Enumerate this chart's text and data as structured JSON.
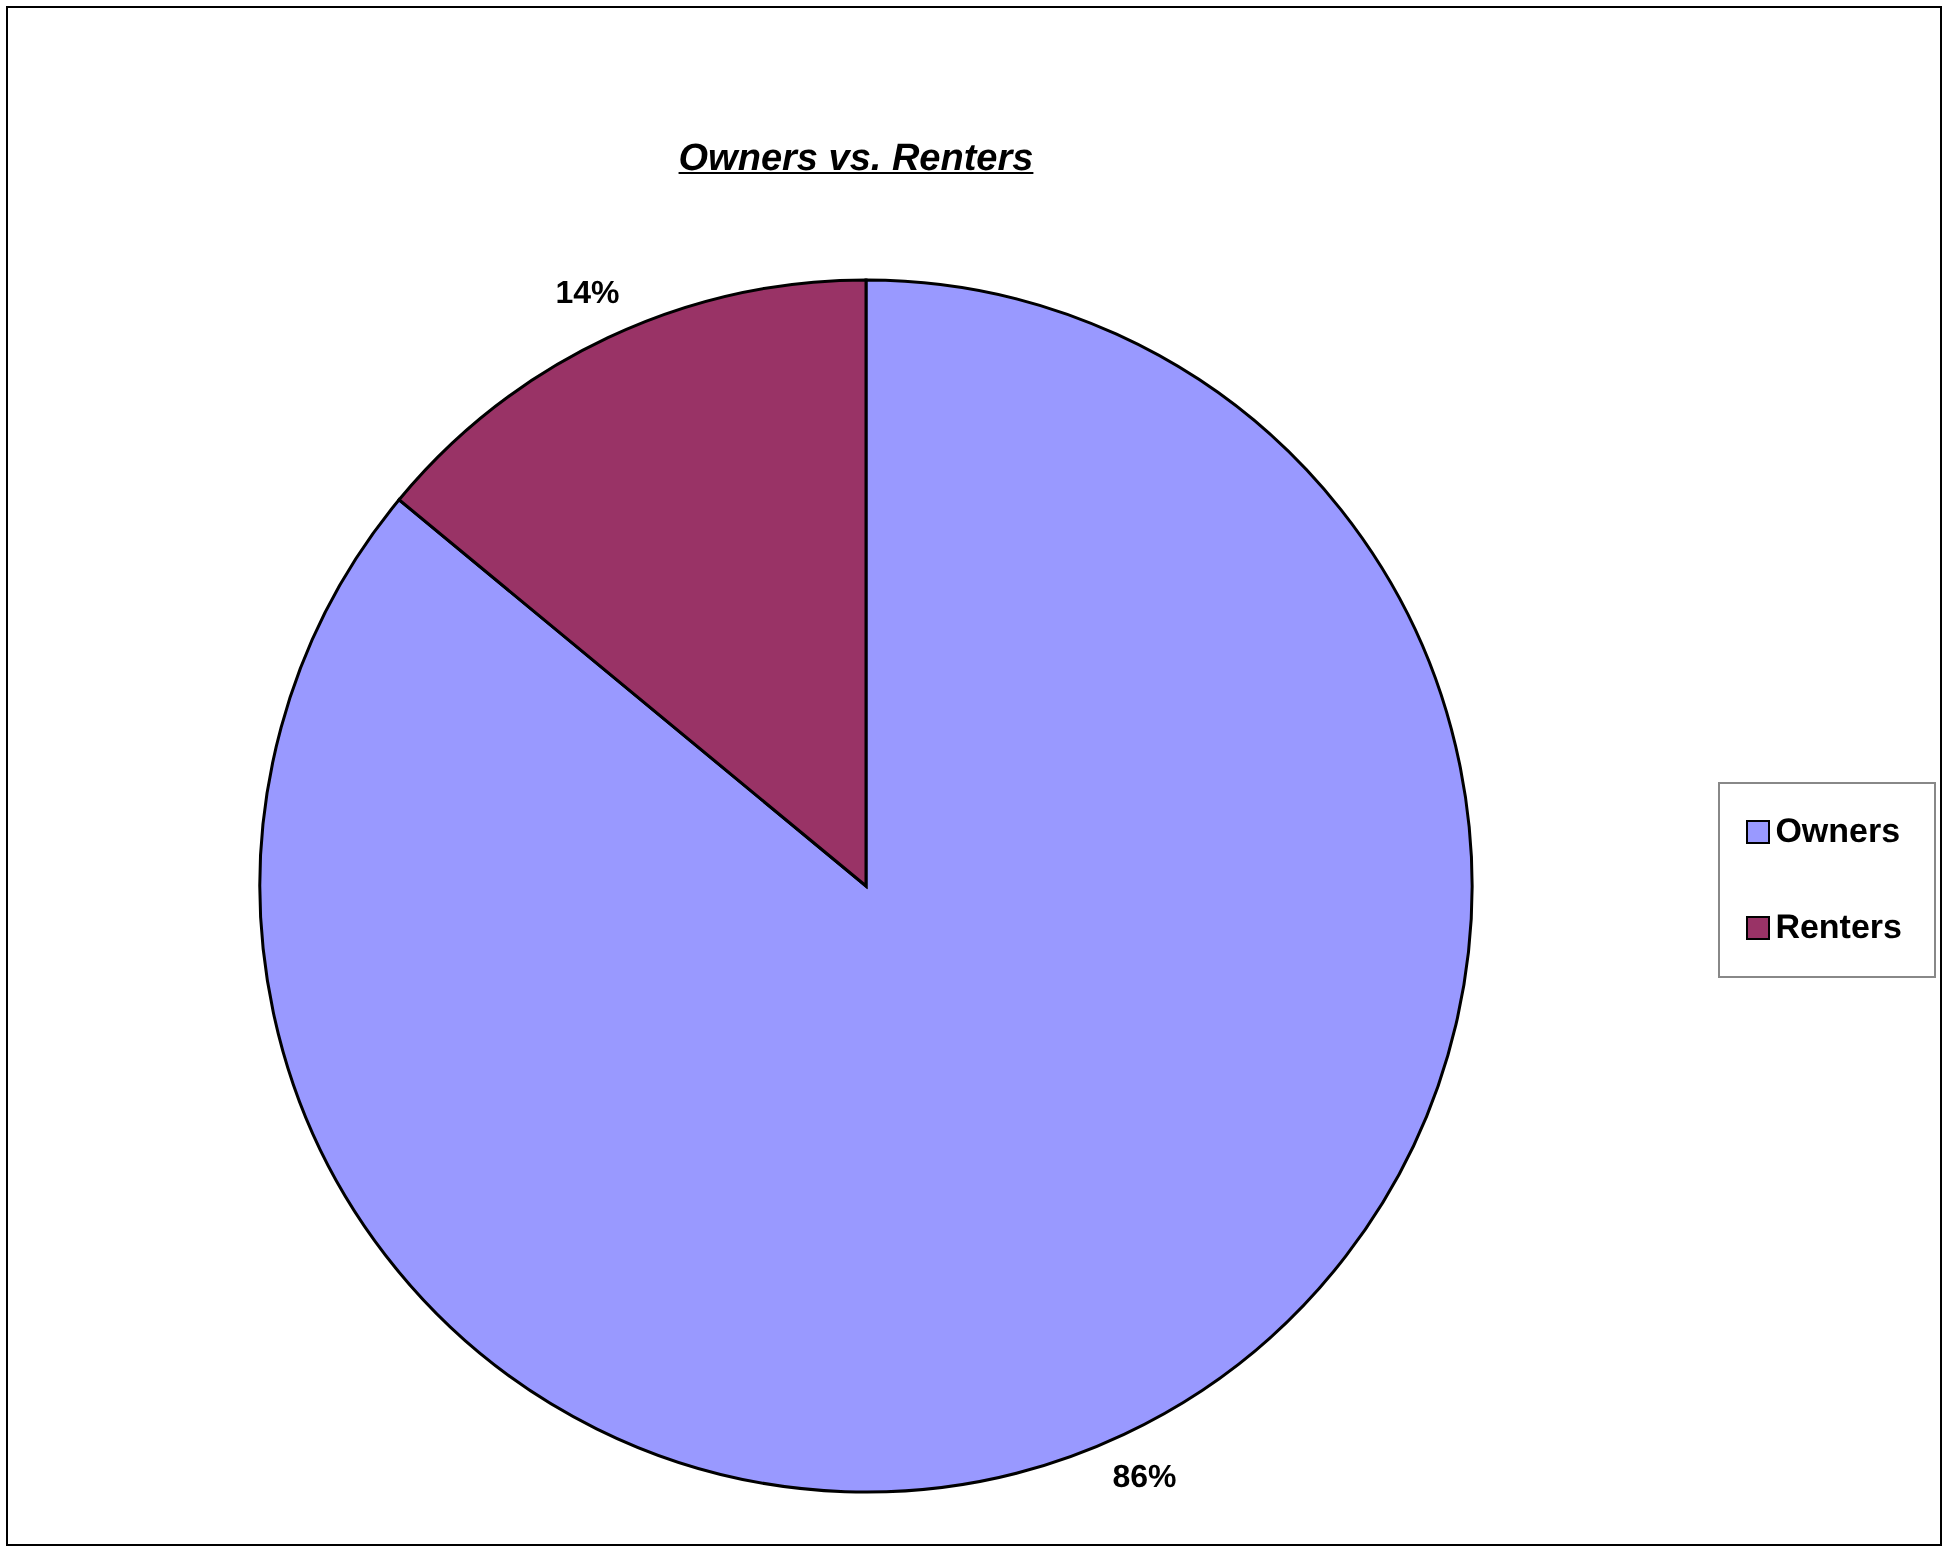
{
  "chart_data": {
    "type": "pie",
    "title": "Owners vs. Renters",
    "categories": [
      "Owners",
      "Renters"
    ],
    "values": [
      86,
      14
    ],
    "colors": [
      "#9999ff",
      "#993366"
    ],
    "value_labels": [
      "86%",
      "14%"
    ],
    "legend": "right"
  }
}
